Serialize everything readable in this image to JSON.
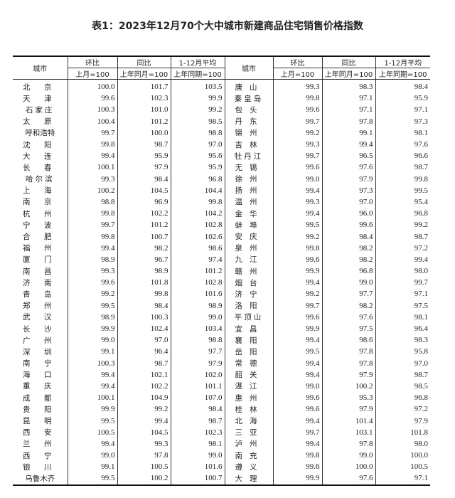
{
  "title": "表1：2023年12月70个大中城市新建商品住宅销售价格指数",
  "headers": {
    "city": "城市",
    "mom": "环比",
    "yoy": "同比",
    "avg": "1-12月平均",
    "mom_base": "上月=100",
    "yoy_base": "上年同月=100",
    "avg_base": "上年同期=100"
  },
  "left": [
    [
      "北京",
      "100.0",
      "101.7",
      "103.5"
    ],
    [
      "天津",
      "99.6",
      "102.3",
      "99.9"
    ],
    [
      "石家庄",
      "100.3",
      "101.0",
      "99.2"
    ],
    [
      "太原",
      "100.4",
      "101.2",
      "98.5"
    ],
    [
      "呼和浩特",
      "99.7",
      "100.0",
      "98.8"
    ],
    [
      "沈阳",
      "99.8",
      "98.7",
      "97.0"
    ],
    [
      "大连",
      "99.4",
      "95.9",
      "95.6"
    ],
    [
      "长春",
      "100.1",
      "97.9",
      "95.9"
    ],
    [
      "哈尔滨",
      "99.3",
      "98.4",
      "96.8"
    ],
    [
      "上海",
      "100.2",
      "104.5",
      "104.4"
    ],
    [
      "南京",
      "98.8",
      "96.9",
      "99.8"
    ],
    [
      "杭州",
      "99.8",
      "102.2",
      "104.2"
    ],
    [
      "宁波",
      "99.7",
      "101.2",
      "102.8"
    ],
    [
      "合肥",
      "99.8",
      "100.7",
      "102.6"
    ],
    [
      "福州",
      "99.4",
      "98.2",
      "98.6"
    ],
    [
      "厦门",
      "98.9",
      "96.7",
      "97.4"
    ],
    [
      "南昌",
      "99.3",
      "98.9",
      "101.2"
    ],
    [
      "济南",
      "99.6",
      "101.8",
      "102.8"
    ],
    [
      "青岛",
      "99.2",
      "99.8",
      "101.6"
    ],
    [
      "郑州",
      "99.5",
      "98.4",
      "98.9"
    ],
    [
      "武汉",
      "98.9",
      "100.3",
      "99.0"
    ],
    [
      "长沙",
      "99.9",
      "102.4",
      "103.4"
    ],
    [
      "广州",
      "99.0",
      "97.0",
      "98.8"
    ],
    [
      "深圳",
      "99.1",
      "96.4",
      "97.7"
    ],
    [
      "南宁",
      "100.3",
      "98.7",
      "97.9"
    ],
    [
      "海口",
      "99.4",
      "102.1",
      "102.0"
    ],
    [
      "重庆",
      "99.4",
      "102.2",
      "101.1"
    ],
    [
      "成都",
      "100.1",
      "104.9",
      "107.0"
    ],
    [
      "贵阳",
      "99.9",
      "99.2",
      "98.4"
    ],
    [
      "昆明",
      "99.5",
      "99.4",
      "98.7"
    ],
    [
      "西安",
      "100.5",
      "104.5",
      "102.3"
    ],
    [
      "兰州",
      "99.4",
      "99.3",
      "98.1"
    ],
    [
      "西宁",
      "99.0",
      "97.8",
      "99.0"
    ],
    [
      "银川",
      "99.1",
      "100.5",
      "101.6"
    ],
    [
      "乌鲁木齐",
      "99.5",
      "100.2",
      "100.7"
    ]
  ],
  "right": [
    [
      "唐山",
      "99.3",
      "98.3",
      "98.4"
    ],
    [
      "秦皇岛",
      "99.8",
      "97.1",
      "95.9"
    ],
    [
      "包头",
      "99.6",
      "97.1",
      "97.1"
    ],
    [
      "丹东",
      "99.7",
      "97.8",
      "97.3"
    ],
    [
      "锦州",
      "99.2",
      "99.1",
      "98.1"
    ],
    [
      "吉林",
      "99.3",
      "99.4",
      "97.6"
    ],
    [
      "牡丹江",
      "99.7",
      "96.5",
      "96.6"
    ],
    [
      "无锡",
      "99.6",
      "97.6",
      "98.7"
    ],
    [
      "徐州",
      "99.0",
      "97.9",
      "99.8"
    ],
    [
      "扬州",
      "99.4",
      "97.3",
      "99.5"
    ],
    [
      "温州",
      "99.3",
      "97.0",
      "95.4"
    ],
    [
      "金华",
      "99.4",
      "96.0",
      "96.8"
    ],
    [
      "蚌埠",
      "99.5",
      "99.6",
      "99.2"
    ],
    [
      "安庆",
      "99.2",
      "98.4",
      "98.7"
    ],
    [
      "泉州",
      "99.8",
      "98.2",
      "97.2"
    ],
    [
      "九江",
      "99.6",
      "98.2",
      "99.4"
    ],
    [
      "赣州",
      "99.9",
      "96.8",
      "98.0"
    ],
    [
      "烟台",
      "99.4",
      "99.0",
      "99.7"
    ],
    [
      "济宁",
      "99.2",
      "97.7",
      "97.1"
    ],
    [
      "洛阳",
      "99.7",
      "98.2",
      "97.5"
    ],
    [
      "平顶山",
      "99.6",
      "97.6",
      "98.1"
    ],
    [
      "宜昌",
      "99.9",
      "97.5",
      "96.4"
    ],
    [
      "襄阳",
      "99.4",
      "98.6",
      "98.3"
    ],
    [
      "岳阳",
      "99.5",
      "97.8",
      "95.8"
    ],
    [
      "常德",
      "99.4",
      "97.8",
      "97.0"
    ],
    [
      "韶关",
      "99.4",
      "97.9",
      "98.7"
    ],
    [
      "湛江",
      "99.0",
      "100.2",
      "98.5"
    ],
    [
      "惠州",
      "99.6",
      "95.3",
      "96.8"
    ],
    [
      "桂林",
      "99.6",
      "97.9",
      "97.2"
    ],
    [
      "北海",
      "99.4",
      "101.4",
      "97.9"
    ],
    [
      "三亚",
      "99.7",
      "103.1",
      "101.8"
    ],
    [
      "泸州",
      "99.4",
      "97.8",
      "98.0"
    ],
    [
      "南充",
      "99.8",
      "99.0",
      "100.0"
    ],
    [
      "遵义",
      "99.6",
      "100.0",
      "100.5"
    ],
    [
      "大理",
      "99.9",
      "97.6",
      "97.1"
    ]
  ]
}
